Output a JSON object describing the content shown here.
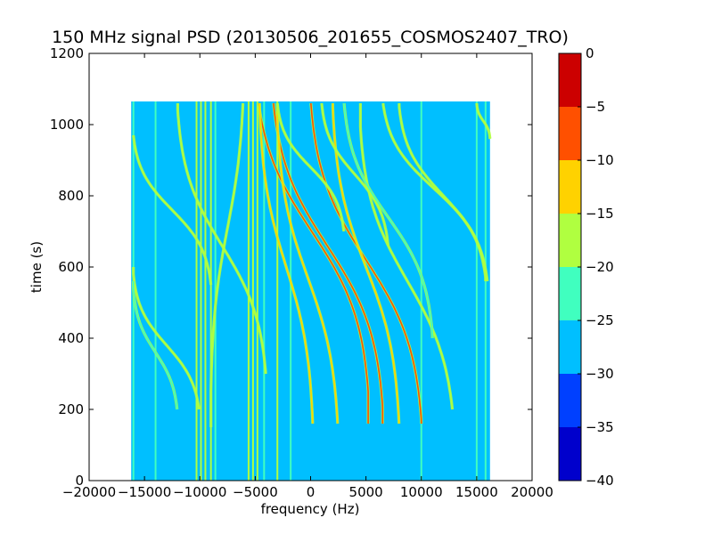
{
  "chart_data": {
    "type": "heatmap",
    "title": "150 MHz signal PSD (20130506_201655_COSMOS2407_TRO)",
    "xlabel": "frequency (Hz)",
    "ylabel": "time (s)",
    "xlim": [
      -20000,
      20000
    ],
    "ylim": [
      0,
      1200
    ],
    "x_ticks": [
      -20000,
      -15000,
      -10000,
      -5000,
      0,
      5000,
      10000,
      15000,
      20000
    ],
    "x_tick_labels": [
      "−20000",
      "−15000",
      "−10000",
      "−5000",
      "0",
      "5000",
      "10000",
      "15000",
      "20000"
    ],
    "y_ticks": [
      0,
      200,
      400,
      600,
      800,
      1000,
      1200
    ],
    "y_tick_labels": [
      "0",
      "200",
      "400",
      "600",
      "800",
      "1000",
      "1200"
    ],
    "data_extent": {
      "freq_min": -16200,
      "freq_max": 16200,
      "time_min": 0,
      "time_max": 1065
    },
    "background_level": -27.5,
    "colorbar": {
      "levels": [
        -40,
        -35,
        -30,
        -25,
        -20,
        -15,
        -10,
        -5,
        0
      ],
      "tick_labels": [
        "−40",
        "−35",
        "−30",
        "−25",
        "−20",
        "−15",
        "−10",
        "−5",
        "0"
      ],
      "colors": [
        "#0000cc",
        "#0040ff",
        "#00bfff",
        "#40ffbf",
        "#b0ff40",
        "#ffd200",
        "#ff5000",
        "#cc0000"
      ]
    },
    "vertical_lines": [
      {
        "freq": -16000,
        "level": -22
      },
      {
        "freq": -14000,
        "level": -22
      },
      {
        "freq": -10300,
        "level": -18
      },
      {
        "freq": -9900,
        "level": -17
      },
      {
        "freq": -9500,
        "level": -18
      },
      {
        "freq": -9000,
        "level": -20
      },
      {
        "freq": -8600,
        "level": -22
      },
      {
        "freq": -5600,
        "level": -18
      },
      {
        "freq": -5200,
        "level": -17
      },
      {
        "freq": -4800,
        "level": -20
      },
      {
        "freq": -4200,
        "level": -22
      },
      {
        "freq": -3000,
        "level": -20
      },
      {
        "freq": -1800,
        "level": -22
      },
      {
        "freq": 10000,
        "level": -22
      },
      {
        "freq": 15000,
        "level": -22
      },
      {
        "freq": 15800,
        "level": -23
      }
    ],
    "doppler_tracks": [
      {
        "x_top": -5000,
        "t_top": 1060,
        "x_bottom": 5200,
        "t_bottom": 160,
        "t_mid": 520,
        "level": -8
      },
      {
        "x_top": -3500,
        "t_top": 1060,
        "x_bottom": 6500,
        "t_bottom": 160,
        "t_mid": 560,
        "level": -8
      },
      {
        "x_top": 0,
        "t_top": 1060,
        "x_bottom": 10000,
        "t_bottom": 160,
        "t_mid": 600,
        "level": -8
      },
      {
        "x_top": -4600,
        "t_top": 1060,
        "x_bottom": 200,
        "t_bottom": 160,
        "t_mid": 620,
        "level": -12
      },
      {
        "x_top": -3000,
        "t_top": 1060,
        "x_bottom": 2500,
        "t_bottom": 160,
        "t_mid": 650,
        "level": -12
      },
      {
        "x_top": 2000,
        "t_top": 1060,
        "x_bottom": 8000,
        "t_bottom": 160,
        "t_mid": 620,
        "level": -14
      },
      {
        "x_top": 4500,
        "t_top": 1060,
        "x_bottom": 13000,
        "t_bottom": 200,
        "t_mid": 700,
        "level": -16
      },
      {
        "x_top": -6000,
        "t_top": 1060,
        "x_bottom": -9000,
        "t_bottom": 150,
        "t_mid": 500,
        "level": -18
      },
      {
        "x_top": -16000,
        "t_top": 970,
        "x_bottom": -9000,
        "t_bottom": 550,
        "t_mid": 760,
        "level": -18
      },
      {
        "x_top": -16000,
        "t_top": 600,
        "x_bottom": -10000,
        "t_bottom": 200,
        "t_mid": 420,
        "level": -18
      },
      {
        "x_top": -16000,
        "t_top": 560,
        "x_bottom": -12000,
        "t_bottom": 200,
        "t_mid": 400,
        "level": -22
      },
      {
        "x_top": -12000,
        "t_top": 1060,
        "x_bottom": -4000,
        "t_bottom": 300,
        "t_mid": 700,
        "level": -20
      },
      {
        "x_top": 6500,
        "t_top": 1060,
        "x_bottom": 15800,
        "t_bottom": 560,
        "t_mid": 800,
        "level": -18
      },
      {
        "x_top": 8000,
        "t_top": 1060,
        "x_bottom": 16000,
        "t_bottom": 560,
        "t_mid": 820,
        "level": -20
      },
      {
        "x_top": 15000,
        "t_top": 1060,
        "x_bottom": 16200,
        "t_bottom": 960,
        "t_mid": 1010,
        "level": -20
      },
      {
        "x_top": -3000,
        "t_top": 1060,
        "x_bottom": 3000,
        "t_bottom": 700,
        "t_mid": 880,
        "level": -20
      },
      {
        "x_top": 1000,
        "t_top": 1060,
        "x_bottom": 7000,
        "t_bottom": 660,
        "t_mid": 860,
        "level": -20
      },
      {
        "x_top": 3000,
        "t_top": 1060,
        "x_bottom": 11000,
        "t_bottom": 400,
        "t_mid": 720,
        "level": -22
      }
    ]
  }
}
